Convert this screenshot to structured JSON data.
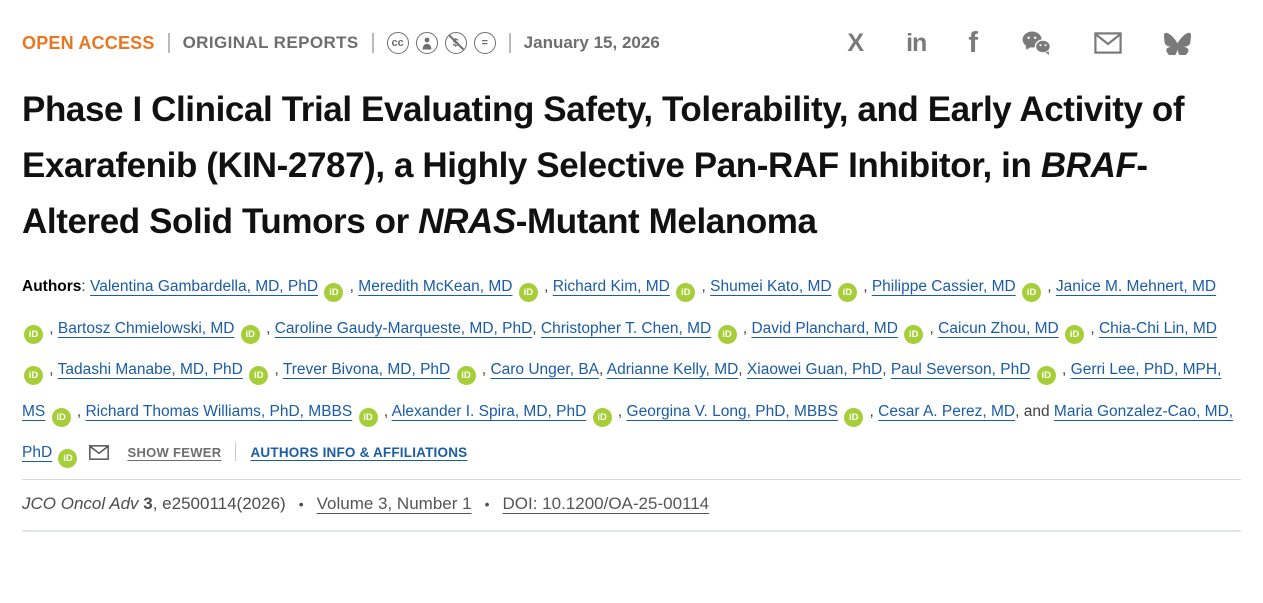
{
  "colors": {
    "accent_orange": "#E87722",
    "link_blue": "#1A5CA8",
    "orcid_green": "#A6CE39",
    "muted_gray": "#6E6E6E"
  },
  "topbar": {
    "open_access": "OPEN ACCESS",
    "section": "ORIGINAL REPORTS",
    "date": "January 15, 2026",
    "license_glyphs": {
      "cc": "cc",
      "nc": "$",
      "nd": "="
    },
    "share_glyphs": {
      "x": "X",
      "linkedin": "in",
      "facebook": "f"
    }
  },
  "title": {
    "segments": [
      {
        "text": "Phase I Clinical Trial Evaluating Safety, Tolerability, and Early Activity of Exarafenib (KIN-2787), a Highly Selective Pan-RAF Inhibitor, in ",
        "italic": false
      },
      {
        "text": "BRAF",
        "italic": true
      },
      {
        "text": "-Altered Solid Tumors or ",
        "italic": false
      },
      {
        "text": "NRAS",
        "italic": true
      },
      {
        "text": "-Mutant Melanoma",
        "italic": false
      }
    ]
  },
  "authors": {
    "label": "Authors",
    "colon": ": ",
    "list": [
      {
        "name": "Valentina Gambardella, MD, PhD",
        "orcid": true,
        "sep": ","
      },
      {
        "name": "Meredith McKean, MD",
        "orcid": true,
        "sep": ","
      },
      {
        "name": "Richard Kim, MD",
        "orcid": true,
        "sep": ","
      },
      {
        "name": "Shumei Kato, MD",
        "orcid": true,
        "sep": ","
      },
      {
        "name": "Philippe Cassier, MD",
        "orcid": true,
        "sep": ","
      },
      {
        "name": "Janice M. Mehnert, MD",
        "orcid": true,
        "sep": ","
      },
      {
        "name": "Bartosz Chmielowski, MD",
        "orcid": true,
        "sep": ","
      },
      {
        "name": "Caroline Gaudy-Marqueste, MD, PhD",
        "orcid": false,
        "sep": ","
      },
      {
        "name": "Christopher T. Chen, MD",
        "orcid": true,
        "sep": ","
      },
      {
        "name": "David Planchard, MD",
        "orcid": true,
        "sep": ","
      },
      {
        "name": "Caicun Zhou, MD",
        "orcid": true,
        "sep": ","
      },
      {
        "name": "Chia-Chi Lin, MD",
        "orcid": true,
        "sep": ","
      },
      {
        "name": "Tadashi Manabe, MD, PhD",
        "orcid": true,
        "sep": ","
      },
      {
        "name": "Trever Bivona, MD, PhD",
        "orcid": true,
        "sep": ","
      },
      {
        "name": "Caro Unger, BA",
        "orcid": false,
        "sep": ","
      },
      {
        "name": "Adrianne Kelly, MD",
        "orcid": false,
        "sep": ","
      },
      {
        "name": "Xiaowei Guan, PhD",
        "orcid": false,
        "sep": ","
      },
      {
        "name": "Paul Severson, PhD",
        "orcid": true,
        "sep": ","
      },
      {
        "name": "Gerri Lee, PhD, MPH, MS",
        "orcid": true,
        "sep": ","
      },
      {
        "name": "Richard Thomas Williams, PhD, MBBS",
        "orcid": true,
        "sep": ","
      },
      {
        "name": "Alexander I. Spira, MD, PhD",
        "orcid": true,
        "sep": ","
      },
      {
        "name": "Georgina V. Long, PhD, MBBS",
        "orcid": true,
        "sep": ","
      },
      {
        "name": "Cesar A. Perez, MD",
        "orcid": false,
        "sep": ", and"
      },
      {
        "name": "Maria Gonzalez-Cao, MD, PhD",
        "orcid": true,
        "sep": "",
        "email": true
      }
    ],
    "orcid_label": "iD",
    "show_fewer": "SHOW FEWER",
    "info_link": "AUTHORS INFO & AFFILIATIONS"
  },
  "citation": {
    "journal_italic": "JCO Oncol Adv",
    "volume_bold": "3",
    "article_id": ", e2500114(2026)",
    "bullet": "•",
    "volume_link": "Volume 3, Number 1",
    "doi_link": "DOI: 10.1200/OA-25-00114"
  }
}
